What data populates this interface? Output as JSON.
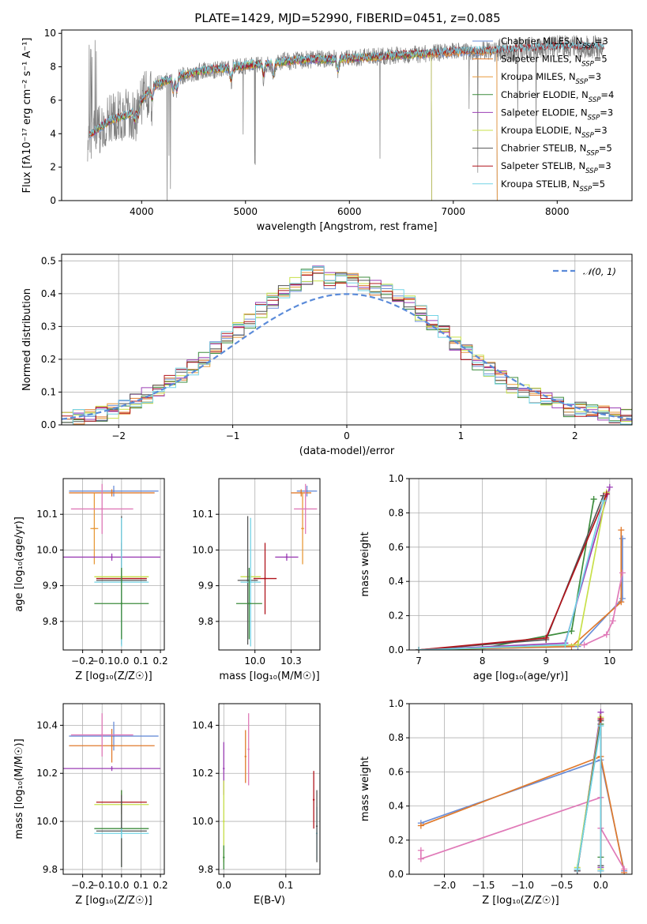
{
  "figure": {
    "title": "PLATE=1429, MJD=52990, FIBERID=0451, z=0.085"
  },
  "colors": {
    "Chabrier MILES": "#6b8fd8",
    "Salpeter MILES": "#e07a2c",
    "Kroupa MILES": "#e89a3a",
    "Chabrier ELODIE": "#3d8c3d",
    "Salpeter ELODIE": "#9b3fb5",
    "Kroupa ELODIE": "#c8e04a",
    "Chabrier STELIB": "#555555",
    "Salpeter STELIB": "#b0141c",
    "Kroupa STELIB": "#74d4e6",
    "pink": "#e07ab8",
    "data": "#7f7f7f",
    "gauss": "#5b8bd9"
  },
  "chart_data": [
    {
      "id": "spectrum",
      "type": "line",
      "title": "PLATE=1429, MJD=52990, FIBERID=0451, z=0.085",
      "xlabel": "wavelength [Angstrom, rest frame]",
      "ylabel": "Flux [fλ10⁻¹⁷ erg cm⁻² s⁻¹ A⁻¹]",
      "xlim": [
        3230,
        8720
      ],
      "ylim": [
        0,
        10.2
      ],
      "xticks": [
        4000,
        5000,
        6000,
        7000,
        8000
      ],
      "yticks": [
        0,
        2,
        4,
        6,
        8,
        10
      ],
      "continuum": {
        "x": [
          3500,
          3600,
          3700,
          3800,
          3900,
          4000,
          4100,
          4200,
          4400,
          4600,
          4800,
          5000,
          5200,
          5500,
          6000,
          6500,
          7000,
          7500,
          8000,
          8400
        ],
        "y": [
          3.9,
          4.4,
          4.8,
          5.0,
          5.2,
          6.0,
          6.8,
          7.1,
          7.5,
          7.8,
          7.9,
          8.1,
          8.2,
          8.4,
          8.5,
          8.7,
          8.9,
          9.0,
          9.2,
          9.2
        ]
      },
      "legend": [
        {
          "label": "Chabrier MILES, N",
          "sub": "SSP",
          "suffix": "=3"
        },
        {
          "label": "Salpeter MILES, N",
          "sub": "SSP",
          "suffix": "=5"
        },
        {
          "label": "Kroupa MILES, N",
          "sub": "SSP",
          "suffix": "=3"
        },
        {
          "label": "Chabrier ELODIE, N",
          "sub": "SSP",
          "suffix": "=4"
        },
        {
          "label": "Salpeter ELODIE, N",
          "sub": "SSP",
          "suffix": "=3"
        },
        {
          "label": "Kroupa ELODIE, N",
          "sub": "SSP",
          "suffix": "=3"
        },
        {
          "label": "Chabrier STELIB, N",
          "sub": "SSP",
          "suffix": "=5"
        },
        {
          "label": "Salpeter STELIB, N",
          "sub": "SSP",
          "suffix": "=3"
        },
        {
          "label": "Kroupa STELIB, N",
          "sub": "SSP",
          "suffix": "=5"
        }
      ],
      "legend_placement": "right"
    },
    {
      "id": "residuals",
      "type": "line",
      "xlabel": "(data-model)/error",
      "ylabel": "Normed distribution",
      "xlim": [
        -2.5,
        2.5
      ],
      "ylim": [
        0,
        0.52
      ],
      "xticks": [
        -2,
        -1,
        0,
        1,
        2
      ],
      "yticks": [
        0.0,
        0.1,
        0.2,
        0.3,
        0.4,
        0.5
      ],
      "legend": "𝒩(0, 1)",
      "legend_placement": "top-right",
      "bins": [
        -2.5,
        -2.4,
        -2.3,
        -2.2,
        -2.1,
        -2.0,
        -1.9,
        -1.8,
        -1.7,
        -1.6,
        -1.5,
        -1.4,
        -1.3,
        -1.2,
        -1.1,
        -1.0,
        -0.9,
        -0.8,
        -0.7,
        -0.6,
        -0.5,
        -0.4,
        -0.3,
        -0.2,
        -0.1,
        0.0,
        0.1,
        0.2,
        0.3,
        0.4,
        0.5,
        0.6,
        0.7,
        0.8,
        0.9,
        1.0,
        1.1,
        1.2,
        1.3,
        1.4,
        1.5,
        1.6,
        1.7,
        1.8,
        1.9,
        2.0,
        2.1,
        2.2,
        2.3,
        2.4
      ],
      "base": [
        0.02,
        0.025,
        0.03,
        0.035,
        0.045,
        0.055,
        0.07,
        0.09,
        0.11,
        0.13,
        0.15,
        0.175,
        0.2,
        0.23,
        0.26,
        0.29,
        0.32,
        0.35,
        0.38,
        0.41,
        0.43,
        0.45,
        0.46,
        0.44,
        0.45,
        0.44,
        0.43,
        0.42,
        0.41,
        0.39,
        0.37,
        0.34,
        0.31,
        0.28,
        0.25,
        0.22,
        0.19,
        0.17,
        0.14,
        0.12,
        0.1,
        0.09,
        0.075,
        0.06,
        0.05,
        0.045,
        0.04,
        0.035,
        0.03,
        0.025
      ]
    },
    {
      "id": "age-vs-Z",
      "type": "scatter",
      "xlabel": "Z [log₁₀(Z/Z☉)]",
      "ylabel": "age  [log₁₀(age/yr)]",
      "xlim": [
        -0.3,
        0.22
      ],
      "ylim": [
        9.72,
        10.2
      ],
      "xticks": [
        -0.2,
        -0.1,
        0.0,
        0.1,
        0.2
      ],
      "yticks": [
        9.8,
        9.9,
        10.0,
        10.1
      ],
      "points": [
        {
          "model": "Chabrier MILES",
          "x": -0.04,
          "y": 10.165,
          "xerr": 0.23,
          "yerr": 0.015
        },
        {
          "model": "Salpeter MILES",
          "x": -0.05,
          "y": 10.16,
          "xerr": 0.22,
          "yerr": 0.01
        },
        {
          "model": "Kroupa MILES",
          "x": -0.14,
          "y": 10.06,
          "xerr": 0.02,
          "yerr": 0.1
        },
        {
          "model": "Salpeter ELODIE",
          "x": -0.05,
          "y": 9.98,
          "xerr": 0.25,
          "yerr": 0.01
        },
        {
          "model": "pink",
          "x": -0.1,
          "y": 10.115,
          "xerr": 0.16,
          "yerr": 0.07
        },
        {
          "model": "Kroupa ELODIE",
          "x": 0.0,
          "y": 9.925,
          "xerr": 0.14,
          "yerr": 0.01
        },
        {
          "model": "Salpeter STELIB",
          "x": 0.0,
          "y": 9.92,
          "xerr": 0.13,
          "yerr": 0.1
        },
        {
          "model": "Chabrier STELIB",
          "x": 0.0,
          "y": 9.915,
          "xerr": 0.13,
          "yerr": 0.18
        },
        {
          "model": "Kroupa STELIB",
          "x": 0.0,
          "y": 9.91,
          "xerr": 0.14,
          "yerr": 0.18
        },
        {
          "model": "Chabrier ELODIE",
          "x": 0.0,
          "y": 9.85,
          "xerr": 0.14,
          "yerr": 0.1
        }
      ]
    },
    {
      "id": "age-vs-mass",
      "type": "scatter",
      "xlabel": "mass [log₁₀(M/M☉)]",
      "xlim": [
        9.75,
        10.45
      ],
      "ylim": [
        9.72,
        10.2
      ],
      "xticks": [
        10.0,
        10.25
      ],
      "yticks": [
        9.8,
        9.9,
        10.0,
        10.1
      ],
      "points": [
        {
          "model": "Chabrier MILES",
          "x": 10.36,
          "y": 10.165,
          "xerr": 0.07,
          "yerr": 0.015
        },
        {
          "model": "Salpeter MILES",
          "x": 10.32,
          "y": 10.16,
          "xerr": 0.07,
          "yerr": 0.01
        },
        {
          "model": "Kroupa MILES",
          "x": 10.33,
          "y": 10.06,
          "xerr": 0.01,
          "yerr": 0.1
        },
        {
          "model": "pink",
          "x": 10.35,
          "y": 10.115,
          "xerr": 0.08,
          "yerr": 0.07
        },
        {
          "model": "Salpeter ELODIE",
          "x": 10.22,
          "y": 9.98,
          "xerr": 0.08,
          "yerr": 0.01
        },
        {
          "model": "Kroupa ELODIE",
          "x": 9.97,
          "y": 9.925,
          "xerr": 0.07,
          "yerr": 0.01
        },
        {
          "model": "Salpeter STELIB",
          "x": 10.07,
          "y": 9.92,
          "xerr": 0.08,
          "yerr": 0.1
        },
        {
          "model": "Chabrier STELIB",
          "x": 9.95,
          "y": 9.915,
          "xerr": 0.07,
          "yerr": 0.18
        },
        {
          "model": "Kroupa STELIB",
          "x": 9.97,
          "y": 9.91,
          "xerr": 0.07,
          "yerr": 0.18
        },
        {
          "model": "Chabrier ELODIE",
          "x": 9.96,
          "y": 9.85,
          "xerr": 0.09,
          "yerr": 0.1
        }
      ]
    },
    {
      "id": "weight-vs-age",
      "type": "line",
      "xlabel": "age  [log₁₀(age/yr)]",
      "ylabel": "mass weight",
      "xlim": [
        6.85,
        10.35
      ],
      "ylim": [
        0,
        1.0
      ],
      "xticks": [
        7,
        8,
        9,
        10
      ],
      "yticks": [
        0.0,
        0.2,
        0.4,
        0.6,
        0.8,
        1.0
      ],
      "series": [
        {
          "model": "Chabrier MILES",
          "x": [
            7.0,
            9.5,
            10.2,
            10.2
          ],
          "y": [
            0.0,
            0.02,
            0.3,
            0.65
          ]
        },
        {
          "model": "Salpeter MILES",
          "x": [
            7.0,
            9.4,
            10.18,
            10.18
          ],
          "y": [
            0.0,
            0.02,
            0.28,
            0.7
          ]
        },
        {
          "model": "pink",
          "x": [
            7.0,
            9.6,
            9.95,
            10.05,
            10.2
          ],
          "y": [
            0.0,
            0.03,
            0.09,
            0.17,
            0.45
          ]
        },
        {
          "model": "Chabrier ELODIE",
          "x": [
            7.0,
            8.0,
            9.4,
            9.75
          ],
          "y": [
            0.0,
            0.01,
            0.11,
            0.88
          ]
        },
        {
          "model": "Salpeter ELODIE",
          "x": [
            7.0,
            9.3,
            10.0
          ],
          "y": [
            0.0,
            0.04,
            0.95
          ]
        },
        {
          "model": "Kroupa ELODIE",
          "x": [
            7.0,
            9.5,
            9.95
          ],
          "y": [
            0.0,
            0.03,
            0.92
          ]
        },
        {
          "model": "Chabrier STELIB",
          "x": [
            7.0,
            9.0,
            9.9
          ],
          "y": [
            0.0,
            0.06,
            0.9
          ]
        },
        {
          "model": "Salpeter STELIB",
          "x": [
            7.0,
            9.0,
            9.95
          ],
          "y": [
            0.0,
            0.07,
            0.91
          ]
        },
        {
          "model": "Kroupa STELIB",
          "x": [
            7.0,
            9.3,
            9.9
          ],
          "y": [
            0.0,
            0.03,
            0.87
          ]
        }
      ]
    },
    {
      "id": "mass-vs-Z",
      "type": "scatter",
      "xlabel": "Z [log₁₀(Z/Z☉)]",
      "ylabel": "mass [log₁₀(M/M☉)]",
      "xlim": [
        -0.3,
        0.22
      ],
      "ylim": [
        9.78,
        10.49
      ],
      "xticks": [
        -0.2,
        -0.1,
        0.0,
        0.1,
        0.2
      ],
      "yticks": [
        9.8,
        10.0,
        10.2,
        10.4
      ],
      "points": [
        {
          "model": "Chabrier MILES",
          "x": -0.04,
          "y": 10.355,
          "xerr": 0.23,
          "yerr": 0.06
        },
        {
          "model": "Salpeter MILES",
          "x": -0.05,
          "y": 10.315,
          "xerr": 0.22,
          "yerr": 0.07
        },
        {
          "model": "pink",
          "x": -0.1,
          "y": 10.36,
          "xerr": 0.16,
          "yerr": 0.09
        },
        {
          "model": "Salpeter ELODIE",
          "x": -0.05,
          "y": 10.22,
          "xerr": 0.25,
          "yerr": 0.01
        },
        {
          "model": "Salpeter STELIB",
          "x": 0.0,
          "y": 10.08,
          "xerr": 0.13,
          "yerr": 0.05
        },
        {
          "model": "Kroupa ELODIE",
          "x": 0.0,
          "y": 10.07,
          "xerr": 0.14,
          "yerr": 0.01
        },
        {
          "model": "Chabrier ELODIE",
          "x": 0.0,
          "y": 9.97,
          "xerr": 0.14,
          "yerr": 0.16
        },
        {
          "model": "Chabrier STELIB",
          "x": 0.0,
          "y": 9.96,
          "xerr": 0.13,
          "yerr": 0.15
        },
        {
          "model": "Kroupa STELIB",
          "x": 0.0,
          "y": 9.95,
          "xerr": 0.14,
          "yerr": 0.02
        }
      ]
    },
    {
      "id": "mass-vs-ebv",
      "type": "scatter",
      "xlabel": "E(B-V)",
      "xlim": [
        -0.008,
        0.155
      ],
      "ylim": [
        9.78,
        10.49
      ],
      "xticks": [
        0.0,
        0.1
      ],
      "yticks": [
        9.8,
        10.0,
        10.2,
        10.4
      ],
      "points": [
        {
          "model": "Salpeter ELODIE",
          "x": 0.0,
          "y": 10.22,
          "yerr": 0.11
        },
        {
          "model": "Kroupa ELODIE",
          "x": 0.0,
          "y": 10.0,
          "yerr": 0.17
        },
        {
          "model": "Chabrier ELODIE",
          "x": 0.0,
          "y": 9.85,
          "yerr": 0.05
        },
        {
          "model": "Salpeter MILES",
          "x": 0.035,
          "y": 10.27,
          "yerr": 0.11
        },
        {
          "model": "pink",
          "x": 0.04,
          "y": 10.3,
          "yerr": 0.15
        },
        {
          "model": "Salpeter STELIB",
          "x": 0.145,
          "y": 10.09,
          "yerr": 0.12
        },
        {
          "model": "Kroupa STELIB",
          "x": 0.15,
          "y": 9.95,
          "yerr": 0.11
        },
        {
          "model": "Chabrier STELIB",
          "x": 0.15,
          "y": 9.98,
          "yerr": 0.15
        }
      ]
    },
    {
      "id": "weight-vs-Z",
      "type": "line",
      "xlabel": "Z [log₁₀(Z/Z☉)]",
      "ylabel": "mass weight",
      "xlim": [
        -2.45,
        0.4
      ],
      "ylim": [
        0,
        1.0
      ],
      "xticks": [
        -2.0,
        -1.5,
        -1.0,
        -0.5,
        0.0
      ],
      "yticks": [
        0.0,
        0.2,
        0.4,
        0.6,
        0.8,
        1.0
      ],
      "series": [
        {
          "model": "Chabrier MILES",
          "x": [
            -2.3,
            0.0,
            0.3
          ],
          "y": [
            0.3,
            0.67,
            0.02
          ]
        },
        {
          "model": "Salpeter MILES",
          "x": [
            -2.3,
            0.0,
            0.3
          ],
          "y": [
            0.285,
            0.69,
            0.01
          ]
        },
        {
          "model": "pink",
          "x": [
            -2.3,
            -2.3,
            0.0,
            0.0,
            0.3
          ],
          "y": [
            0.14,
            0.09,
            0.45,
            0.27,
            0.03
          ]
        },
        {
          "model": "Chabrier ELODIE",
          "x": [
            -0.3,
            0.0,
            0.0
          ],
          "y": [
            0.03,
            0.88,
            0.1
          ]
        },
        {
          "model": "Salpeter ELODIE",
          "x": [
            -0.3,
            0.0,
            0.0
          ],
          "y": [
            0.02,
            0.95,
            0.04
          ]
        },
        {
          "model": "Kroupa ELODIE",
          "x": [
            -0.3,
            0.0,
            0.0
          ],
          "y": [
            0.04,
            0.92,
            0.03
          ]
        },
        {
          "model": "Chabrier STELIB",
          "x": [
            -0.3,
            0.0,
            0.0
          ],
          "y": [
            0.02,
            0.9,
            0.05
          ]
        },
        {
          "model": "Salpeter STELIB",
          "x": [
            0.0,
            0.0
          ],
          "y": [
            0.91,
            0.02
          ]
        },
        {
          "model": "Kroupa STELIB",
          "x": [
            -0.3,
            0.0,
            0.0
          ],
          "y": [
            0.03,
            0.87,
            0.02
          ]
        }
      ]
    }
  ]
}
